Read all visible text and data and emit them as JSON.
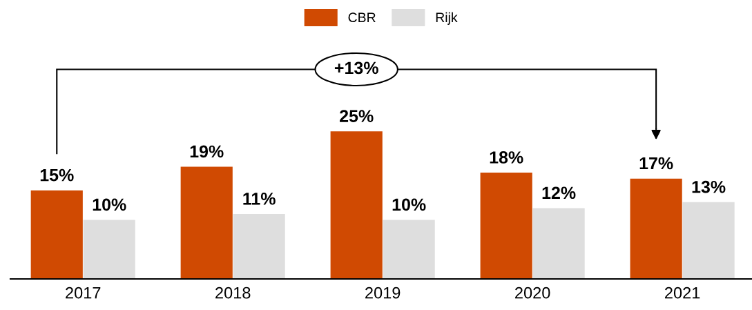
{
  "chart_data": {
    "type": "bar",
    "categories": [
      "2017",
      "2018",
      "2019",
      "2020",
      "2021"
    ],
    "series": [
      {
        "name": "CBR",
        "color": "#d04a02",
        "values": [
          15,
          19,
          25,
          18,
          17
        ],
        "value_labels": [
          "15%",
          "19%",
          "25%",
          "18%",
          "17%"
        ]
      },
      {
        "name": "Rijk",
        "color": "#dedede",
        "values": [
          10,
          11,
          10,
          12,
          13
        ],
        "value_labels": [
          "10%",
          "11%",
          "10%",
          "12%",
          "13%"
        ]
      }
    ],
    "legend": "top",
    "grid": false,
    "annotations": [
      "+13%"
    ]
  }
}
